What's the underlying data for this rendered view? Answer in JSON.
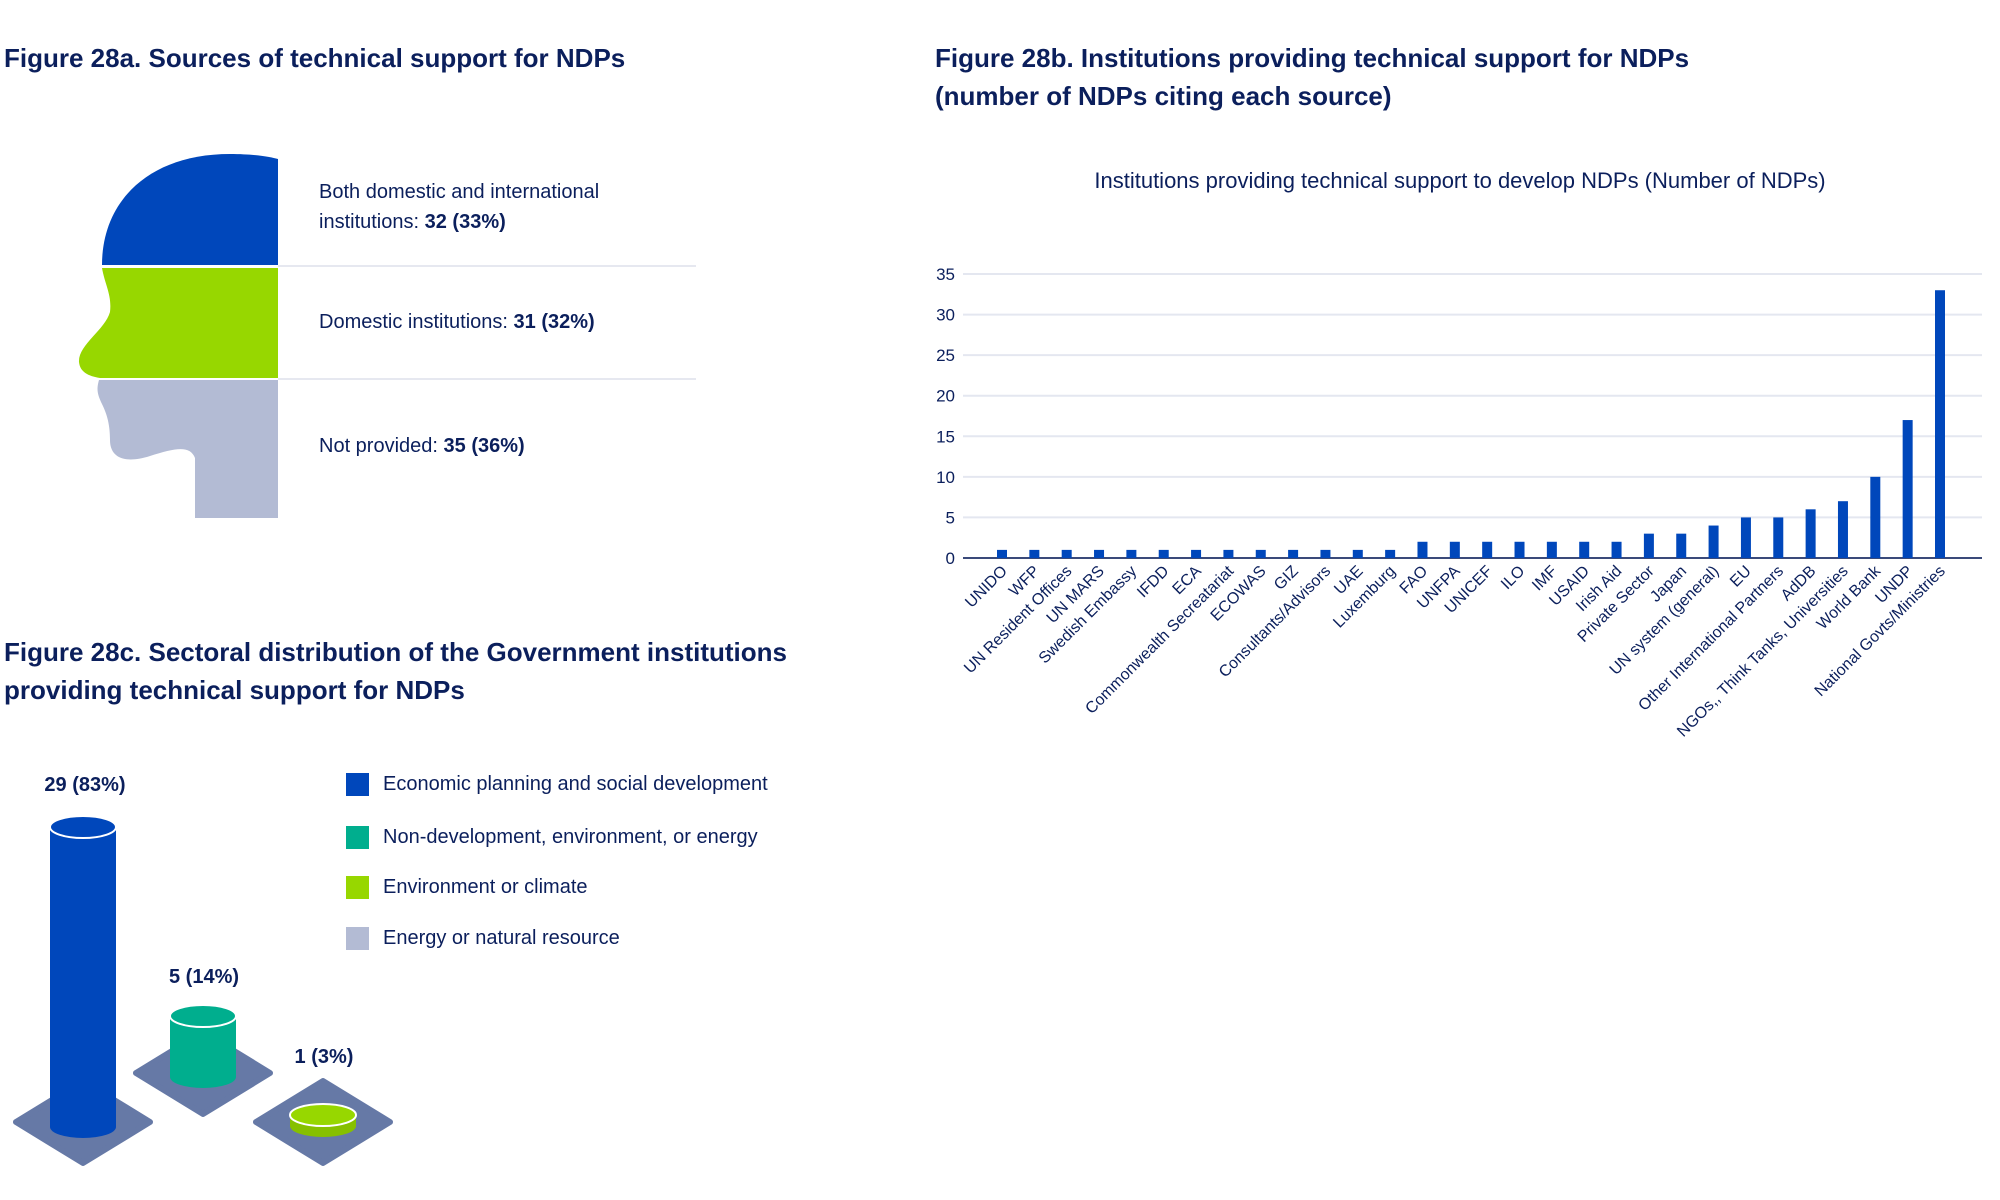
{
  "fig_a": {
    "title": "Figure 28a. Sources of technical support for NDPs",
    "items": [
      {
        "label_line1": "Both domestic and international",
        "label_line2": "institutions: ",
        "value": "32 (33%)",
        "color": "#0047bb"
      },
      {
        "label": "Domestic institutions: ",
        "value": "31 (32%)",
        "color": "#97d700"
      },
      {
        "label": "Not provided: ",
        "value": "35 (36%)",
        "color": "#b3bbd4"
      }
    ]
  },
  "fig_b": {
    "title_line1": "Figure 28b. Institutions providing technical support for NDPs",
    "title_line2": "(number of NDPs citing each source)"
  },
  "fig_c": {
    "title_line1": "Figure 28c. Sectoral distribution of the Government institutions",
    "title_line2": "providing technical support for NDPs",
    "legend": [
      {
        "label": "Economic planning and social development",
        "color": "#0047bb"
      },
      {
        "label": "Non-development, environment, or energy",
        "color": "#00ae8e"
      },
      {
        "label": "Environment or climate",
        "color": "#97d700"
      },
      {
        "label": "Energy or natural resource",
        "color": "#b3bbd4"
      }
    ],
    "cylinders": [
      {
        "label": "29 (83%)",
        "value": 29,
        "color": "#0047bb"
      },
      {
        "label": "5 (14%)",
        "value": 5,
        "color": "#00ae8e"
      },
      {
        "label": "1 (3%)",
        "value": 1,
        "color": "#97d700"
      }
    ]
  },
  "chart_data": {
    "type": "bar",
    "title": "Institutions providing technical support to develop NDPs (Number of NDPs)",
    "xlabel": "",
    "ylabel": "",
    "ylim": [
      0,
      35
    ],
    "yticks": [
      0,
      5,
      10,
      15,
      20,
      25,
      30,
      35
    ],
    "grid": true,
    "color": "#0047bb",
    "categories": [
      "UNIDO",
      "WFP",
      "UN Resident Offices",
      "UN MARS",
      "Swedish Embassy",
      "IFDD",
      "ECA",
      "Commonwealth Secreatariat",
      "ECOWAS",
      "GIZ",
      "Consultants/Advisors",
      "UAE",
      "Luxemburg",
      "FAO",
      "UNFPA",
      "UNICEF",
      "ILO",
      "IMF",
      "USAID",
      "Irish Aid",
      "Private Sector",
      "Japan",
      "UN system (general)",
      "EU",
      "Other International Partners",
      "AdDB",
      "NGOs,, Think Tanks, Universities",
      "World Bank",
      "UNDP",
      "National Govts/Ministries"
    ],
    "values": [
      1,
      1,
      1,
      1,
      1,
      1,
      1,
      1,
      1,
      1,
      1,
      1,
      1,
      2,
      2,
      2,
      2,
      2,
      2,
      2,
      3,
      3,
      4,
      5,
      5,
      6,
      7,
      10,
      17,
      33
    ]
  }
}
